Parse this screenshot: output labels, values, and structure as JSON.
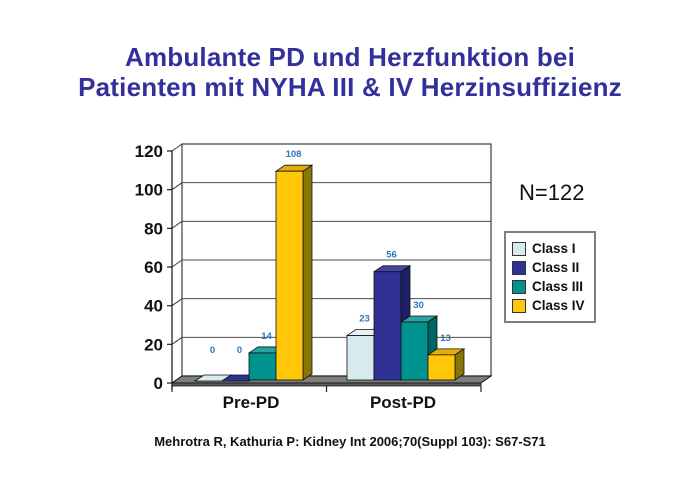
{
  "title": {
    "line1": "Ambulante PD und Herzfunktion bei",
    "line2": "Patienten mit NYHA III & IV Herzinsuffizienz",
    "color": "#31309C"
  },
  "annotation": {
    "n_label": "N=122"
  },
  "citation": {
    "text": "Mehrotra R, Kathuria P: Kidney Int 2006;70(Suppl 103): S67-S71"
  },
  "chart_data": {
    "type": "bar",
    "style": "3d-column",
    "categories": [
      "Pre-PD",
      "Post-PD"
    ],
    "series": [
      {
        "name": "Class I",
        "values": [
          0,
          23
        ],
        "color": "#D7EBEE",
        "color_top": "#E6F3F5",
        "color_side": "#9FB6BB"
      },
      {
        "name": "Class II",
        "values": [
          0,
          56
        ],
        "color": "#2F3193",
        "color_top": "#4245A3",
        "color_side": "#1E2065"
      },
      {
        "name": "Class III",
        "values": [
          14,
          30
        ],
        "color": "#00928E",
        "color_top": "#27A4A0",
        "color_side": "#006663"
      },
      {
        "name": "Class IV",
        "values": [
          108,
          13
        ],
        "color": "#FFC60A",
        "color_top": "#E2AD08",
        "color_side": "#8A7507"
      }
    ],
    "xlabel": "",
    "ylabel": "",
    "ylim": [
      0,
      120
    ],
    "yticks": [
      0,
      20,
      40,
      60,
      80,
      100,
      120
    ],
    "grid": true,
    "wall_color": "#FFFFFF",
    "floor_color": "#7E7E7E",
    "value_labels": true,
    "value_label_color": "#2E74B5",
    "legend_position": "right"
  }
}
